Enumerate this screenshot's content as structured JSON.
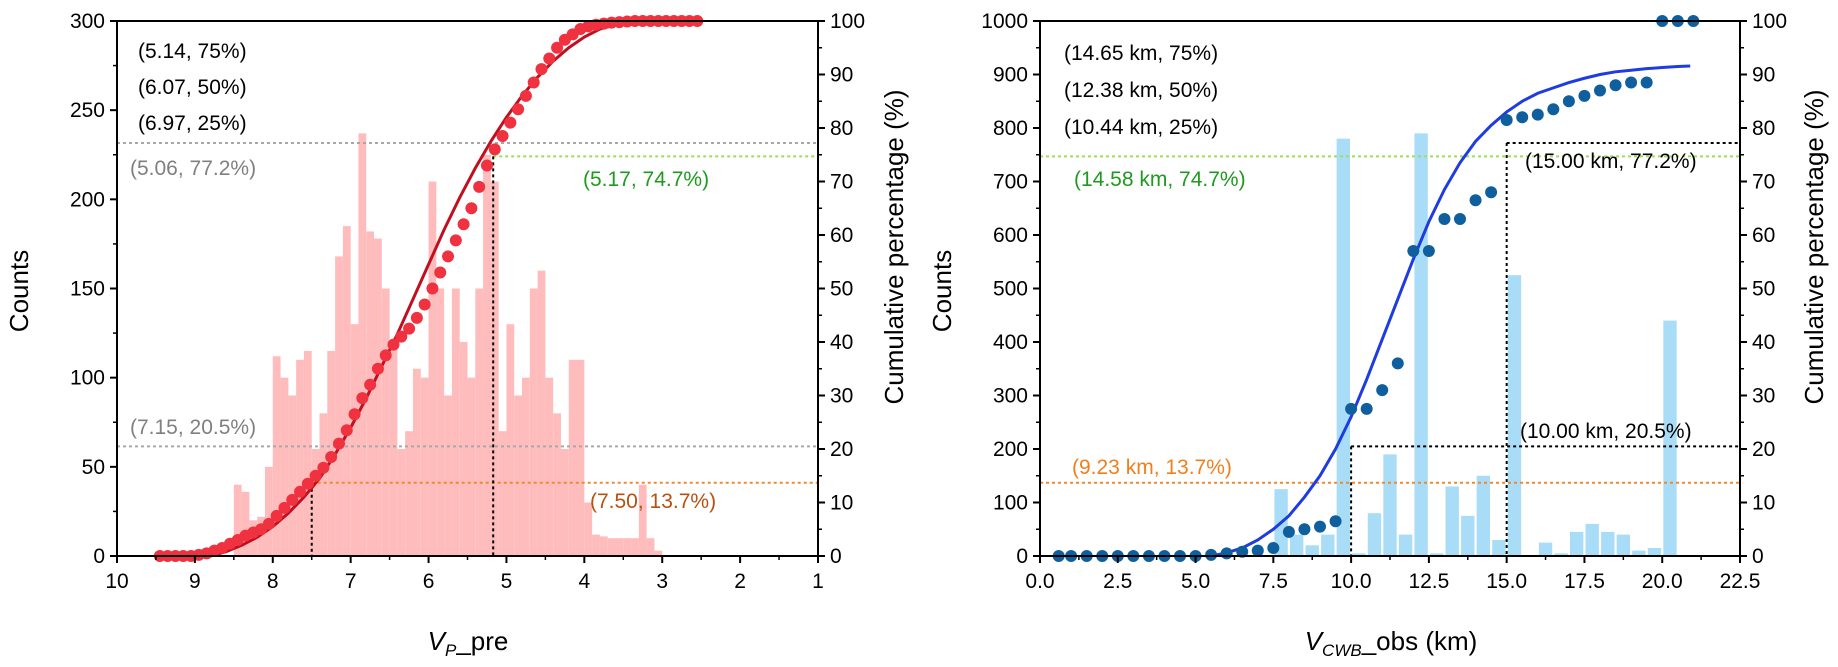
{
  "colors": {
    "left_bar": "#ffbcbc",
    "left_points": "#f0313f",
    "left_curve": "#c01020",
    "right_bar": "#a9ddf7",
    "right_points": "#0f5f9f",
    "right_curve": "#1f3ce0",
    "grey_ref": "#a8a8a8",
    "grey_text": "#808080",
    "green_ref": "#9be05a",
    "green_text": "#1e9a1e",
    "orange_ref": "#f08a30",
    "orange_text_left": "#b8500f",
    "orange_text_right": "#f07f1e",
    "black_ref": "#000000"
  },
  "chart_data": [
    {
      "type": "bar",
      "overlay": [
        "scatter",
        "line"
      ],
      "xlabel": "V_P_pre",
      "xlabel_main": "V",
      "xlabel_sub": "P",
      "xlabel_rest": "_pre",
      "ylabel": "Counts",
      "y2label": "Cumulative percentage (%)",
      "xlim": [
        10,
        1
      ],
      "xaxis_reversed": true,
      "ylim": [
        0,
        300
      ],
      "y2lim": [
        0,
        100
      ],
      "xticks": [
        "10",
        "9",
        "8",
        "7",
        "6",
        "5",
        "4",
        "3",
        "2",
        "1"
      ],
      "yticks": [
        "0",
        "50",
        "100",
        "150",
        "200",
        "250",
        "300"
      ],
      "y2ticks": [
        "0",
        "10",
        "20",
        "30",
        "40",
        "50",
        "60",
        "70",
        "80",
        "90",
        "100"
      ],
      "histogram": {
        "bin_width": 0.1,
        "bins": [
          {
            "x": 8.45,
            "count": 40
          },
          {
            "x": 8.35,
            "count": 36
          },
          {
            "x": 8.25,
            "count": 20
          },
          {
            "x": 8.15,
            "count": 22
          },
          {
            "x": 8.05,
            "count": 50
          },
          {
            "x": 7.95,
            "count": 112
          },
          {
            "x": 7.85,
            "count": 100
          },
          {
            "x": 7.75,
            "count": 90
          },
          {
            "x": 7.65,
            "count": 110
          },
          {
            "x": 7.55,
            "count": 115
          },
          {
            "x": 7.45,
            "count": 60
          },
          {
            "x": 7.35,
            "count": 80
          },
          {
            "x": 7.25,
            "count": 115
          },
          {
            "x": 7.15,
            "count": 168
          },
          {
            "x": 7.05,
            "count": 185
          },
          {
            "x": 6.95,
            "count": 130
          },
          {
            "x": 6.85,
            "count": 237
          },
          {
            "x": 6.75,
            "count": 182
          },
          {
            "x": 6.65,
            "count": 178
          },
          {
            "x": 6.55,
            "count": 150
          },
          {
            "x": 6.45,
            "count": 120
          },
          {
            "x": 6.35,
            "count": 60
          },
          {
            "x": 6.25,
            "count": 70
          },
          {
            "x": 6.15,
            "count": 105
          },
          {
            "x": 6.05,
            "count": 100
          },
          {
            "x": 5.95,
            "count": 210
          },
          {
            "x": 5.85,
            "count": 150
          },
          {
            "x": 5.75,
            "count": 90
          },
          {
            "x": 5.65,
            "count": 150
          },
          {
            "x": 5.55,
            "count": 120
          },
          {
            "x": 5.45,
            "count": 100
          },
          {
            "x": 5.35,
            "count": 150
          },
          {
            "x": 5.25,
            "count": 225
          },
          {
            "x": 5.15,
            "count": 210
          },
          {
            "x": 5.05,
            "count": 70
          },
          {
            "x": 4.95,
            "count": 130
          },
          {
            "x": 4.85,
            "count": 90
          },
          {
            "x": 4.75,
            "count": 100
          },
          {
            "x": 4.65,
            "count": 150
          },
          {
            "x": 4.55,
            "count": 160
          },
          {
            "x": 4.45,
            "count": 100
          },
          {
            "x": 4.35,
            "count": 80
          },
          {
            "x": 4.25,
            "count": 60
          },
          {
            "x": 4.15,
            "count": 110
          },
          {
            "x": 4.05,
            "count": 110
          },
          {
            "x": 3.95,
            "count": 30
          },
          {
            "x": 3.85,
            "count": 12
          },
          {
            "x": 3.75,
            "count": 11
          },
          {
            "x": 3.65,
            "count": 10
          },
          {
            "x": 3.55,
            "count": 10
          },
          {
            "x": 3.45,
            "count": 10
          },
          {
            "x": 3.35,
            "count": 10
          },
          {
            "x": 3.25,
            "count": 40
          },
          {
            "x": 3.15,
            "count": 10
          },
          {
            "x": 3.05,
            "count": 3
          }
        ]
      },
      "cumulative_points": {
        "x": [
          9.45,
          9.35,
          9.25,
          9.15,
          9.05,
          8.95,
          8.85,
          8.75,
          8.65,
          8.55,
          8.45,
          8.35,
          8.25,
          8.15,
          8.05,
          7.95,
          7.85,
          7.75,
          7.65,
          7.55,
          7.45,
          7.35,
          7.25,
          7.15,
          7.05,
          6.95,
          6.85,
          6.75,
          6.65,
          6.55,
          6.45,
          6.35,
          6.25,
          6.15,
          6.05,
          5.95,
          5.85,
          5.75,
          5.65,
          5.55,
          5.45,
          5.35,
          5.25,
          5.15,
          5.05,
          4.95,
          4.85,
          4.75,
          4.65,
          4.55,
          4.45,
          4.35,
          4.25,
          4.15,
          4.05,
          3.95,
          3.85,
          3.75,
          3.65,
          3.55,
          3.45,
          3.35,
          3.25,
          3.15,
          3.05,
          2.95,
          2.85,
          2.75,
          2.65,
          2.55
        ],
        "y": [
          0,
          0,
          0,
          0,
          0,
          0.2,
          0.5,
          1,
          1.5,
          2.3,
          3,
          3.8,
          4.4,
          5,
          6,
          7.5,
          9,
          10.5,
          12,
          13.5,
          15,
          16.5,
          18.5,
          21,
          23.5,
          26.5,
          29.5,
          32,
          35,
          37.5,
          39.5,
          41,
          42.5,
          44.5,
          47,
          50,
          53,
          56,
          59,
          62,
          65,
          69,
          73,
          76,
          78.5,
          81,
          83.5,
          86,
          88.5,
          91,
          93,
          95,
          96.5,
          97.5,
          98.5,
          99,
          99.3,
          99.5,
          99.7,
          99.8,
          99.9,
          100,
          100,
          100,
          100,
          100,
          100,
          100,
          100,
          100
        ]
      },
      "fit_curve": {
        "x": [
          8.8,
          8.6,
          8.4,
          8.2,
          8.0,
          7.8,
          7.6,
          7.4,
          7.2,
          7.0,
          6.8,
          6.6,
          6.4,
          6.2,
          6.0,
          5.8,
          5.6,
          5.4,
          5.2,
          5.0,
          4.8,
          4.6,
          4.4,
          4.2,
          4.0,
          3.8,
          3.6,
          3.4,
          3.2,
          3.0
        ],
        "y": [
          0,
          0.8,
          2,
          3.5,
          5.5,
          8,
          11,
          14.5,
          19,
          24,
          29.5,
          35.5,
          41.5,
          48,
          54.5,
          61,
          67,
          72.5,
          77.5,
          82,
          86,
          89.5,
          92.5,
          95,
          97,
          98.5,
          99.3,
          99.8,
          100,
          100
        ]
      },
      "reference_lines": [
        {
          "kind": "h",
          "y_pct": 77.2,
          "x_from": 10,
          "x_to": 1,
          "color": "grey"
        },
        {
          "kind": "h",
          "y_pct": 20.5,
          "x_from": 10,
          "x_to": 1,
          "color": "grey"
        },
        {
          "kind": "h",
          "y_pct": 74.7,
          "x_from": 5.17,
          "x_to": 1,
          "color": "green"
        },
        {
          "kind": "h",
          "y_pct": 13.7,
          "x_from": 7.5,
          "x_to": 1,
          "color": "orange"
        },
        {
          "kind": "v",
          "x": 5.17,
          "y_pct": 74.7,
          "color": "black"
        },
        {
          "kind": "v",
          "x": 7.5,
          "y_pct": 13.7,
          "color": "black"
        }
      ],
      "annotations": [
        {
          "text": "(5.14, 75%)",
          "color": "black"
        },
        {
          "text": "(6.07, 50%)",
          "color": "black"
        },
        {
          "text": "(6.97, 25%)",
          "color": "black"
        },
        {
          "text": "(5.06, 77.2%)",
          "color": "grey"
        },
        {
          "text": "(7.15, 20.5%)",
          "color": "grey"
        },
        {
          "text": "(5.17, 74.7%)",
          "color": "green"
        },
        {
          "text": "(7.50, 13.7%)",
          "color": "orange"
        }
      ]
    },
    {
      "type": "bar",
      "overlay": [
        "scatter",
        "line"
      ],
      "xlabel": "V_CWB_obs (km)",
      "xlabel_main": "V",
      "xlabel_sub": "CWB",
      "xlabel_rest": "_obs (km)",
      "ylabel": "Counts",
      "y2label": "Cumulative percentage (%)",
      "xlim": [
        0,
        22.5
      ],
      "ylim": [
        0,
        1000
      ],
      "y2lim": [
        0,
        100
      ],
      "xticks": [
        "0.0",
        "2.5",
        "5.0",
        "7.5",
        "10.0",
        "12.5",
        "15.0",
        "17.5",
        "20.0",
        "22.5"
      ],
      "yticks": [
        "0",
        "100",
        "200",
        "300",
        "400",
        "500",
        "600",
        "700",
        "800",
        "900",
        "1000"
      ],
      "y2ticks": [
        "0",
        "10",
        "20",
        "30",
        "40",
        "50",
        "60",
        "70",
        "80",
        "90",
        "100"
      ],
      "histogram": {
        "bin_width": 0.5,
        "bins": [
          {
            "x": 7.75,
            "count": 125
          },
          {
            "x": 8.25,
            "count": 40
          },
          {
            "x": 8.75,
            "count": 20
          },
          {
            "x": 9.25,
            "count": 40
          },
          {
            "x": 9.75,
            "count": 780
          },
          {
            "x": 10.25,
            "count": 5
          },
          {
            "x": 10.75,
            "count": 80
          },
          {
            "x": 11.25,
            "count": 190
          },
          {
            "x": 11.75,
            "count": 40
          },
          {
            "x": 12.25,
            "count": 790
          },
          {
            "x": 12.75,
            "count": 5
          },
          {
            "x": 13.25,
            "count": 130
          },
          {
            "x": 13.75,
            "count": 75
          },
          {
            "x": 14.25,
            "count": 150
          },
          {
            "x": 14.75,
            "count": 30
          },
          {
            "x": 15.25,
            "count": 525
          },
          {
            "x": 16.25,
            "count": 25
          },
          {
            "x": 16.75,
            "count": 5
          },
          {
            "x": 17.25,
            "count": 45
          },
          {
            "x": 17.75,
            "count": 5
          },
          {
            "x": 17.75,
            "count": 60
          },
          {
            "x": 18.25,
            "count": 45
          },
          {
            "x": 18.75,
            "count": 40
          },
          {
            "x": 19.25,
            "count": 10
          },
          {
            "x": 19.75,
            "count": 15
          },
          {
            "x": 20.25,
            "count": 440
          }
        ]
      },
      "cumulative_points": {
        "x": [
          0.6,
          1.0,
          1.5,
          2.0,
          2.5,
          3.0,
          3.5,
          4.0,
          4.5,
          5.0,
          5.5,
          6.0,
          6.5,
          7.0,
          7.5,
          8.0,
          8.5,
          9.0,
          9.5,
          10.0,
          10.5,
          11.0,
          11.5,
          12.0,
          12.5,
          13.0,
          13.5,
          14.0,
          14.5,
          15.0,
          15.5,
          16.0,
          16.5,
          17.0,
          17.5,
          18.0,
          18.5,
          19.0,
          19.5,
          20.0,
          20.5,
          21.0
        ],
        "y": [
          0,
          0,
          0,
          0,
          0,
          0,
          0,
          0,
          0,
          0,
          0.2,
          0.5,
          0.8,
          1,
          1.5,
          4.5,
          5,
          5.5,
          6.5,
          27.5,
          27.5,
          31,
          36,
          57,
          57,
          63,
          63,
          66.5,
          68,
          81.5,
          82,
          82.5,
          83.5,
          85,
          86,
          87,
          88,
          88.5,
          88.5,
          100,
          100,
          100
        ]
      },
      "fit_curve": {
        "x": [
          5.5,
          6.0,
          6.5,
          7.0,
          7.5,
          8.0,
          8.5,
          9.0,
          9.5,
          10.0,
          10.5,
          11.0,
          11.5,
          12.0,
          12.5,
          13.0,
          13.5,
          14.0,
          14.5,
          15.0,
          15.5,
          16.0,
          16.5,
          17.0,
          17.5,
          18.0,
          18.5,
          19.0,
          19.5,
          20.0,
          20.5,
          20.9
        ],
        "y": [
          0,
          0.6,
          1.5,
          3,
          5,
          7.5,
          11,
          15,
          20,
          26,
          33,
          40.5,
          48,
          55.5,
          62.5,
          68.5,
          73.5,
          77.5,
          80.5,
          83,
          85,
          86.5,
          87.5,
          88.5,
          89.3,
          90,
          90.5,
          90.8,
          91.1,
          91.3,
          91.5,
          91.6
        ]
      },
      "reference_lines": [
        {
          "kind": "h",
          "y_pct": 74.7,
          "x_from": 0,
          "x_to": 22.5,
          "color": "green"
        },
        {
          "kind": "h",
          "y_pct": 13.7,
          "x_from": 0,
          "x_to": 22.5,
          "color": "orange"
        },
        {
          "kind": "h",
          "y_pct": 77.2,
          "x_from": 15.0,
          "x_to": 22.5,
          "color": "black"
        },
        {
          "kind": "h",
          "y_pct": 20.5,
          "x_from": 10.0,
          "x_to": 22.5,
          "color": "black"
        },
        {
          "kind": "v",
          "x": 15.0,
          "y_pct": 77.2,
          "color": "black"
        },
        {
          "kind": "v",
          "x": 10.0,
          "y_pct": 20.5,
          "color": "black"
        }
      ],
      "annotations": [
        {
          "text": "(14.65 km, 75%)",
          "color": "black"
        },
        {
          "text": "(12.38 km, 50%)",
          "color": "black"
        },
        {
          "text": "(10.44 km, 25%)",
          "color": "black"
        },
        {
          "text": "(14.58 km, 74.7%)",
          "color": "green"
        },
        {
          "text": "(15.00 km, 77.2%)",
          "color": "black"
        },
        {
          "text": "(10.00 km, 20.5%)",
          "color": "black"
        },
        {
          "text": "(9.23 km, 13.7%)",
          "color": "orange"
        }
      ]
    }
  ]
}
